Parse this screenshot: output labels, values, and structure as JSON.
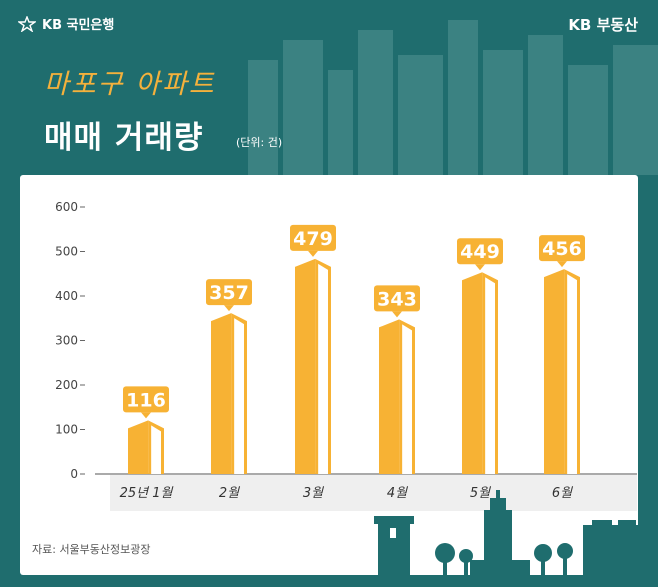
{
  "header": {
    "bank_name": "KB 국민은행",
    "brand_name": "KB 부동산",
    "title_line1": "마포구 아파트",
    "title_line2": "매매 거래량",
    "unit": "(단위: 건)"
  },
  "footer": {
    "source": "자료: 서울부동산정보광장"
  },
  "colors": {
    "background": "#1f6d6e",
    "bar": "#f7b234",
    "title_accent": "#f4b13c"
  },
  "chart_data": {
    "type": "bar",
    "categories": [
      "25년 1월",
      "2월",
      "3월",
      "4월",
      "5월",
      "6월"
    ],
    "values": [
      116,
      357,
      479,
      343,
      449,
      456
    ],
    "title": "",
    "xlabel": "",
    "ylabel": "",
    "ylim": [
      0,
      600
    ],
    "yticks": [
      "0",
      "100",
      "200",
      "300",
      "400",
      "500",
      "600"
    ],
    "grid": false,
    "data_labels": true
  }
}
